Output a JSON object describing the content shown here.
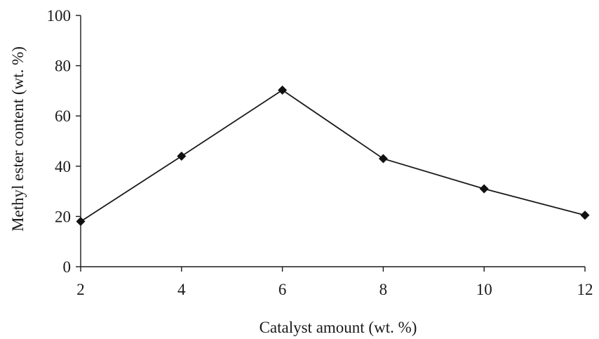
{
  "chart_data": {
    "type": "line",
    "xlabel": "Catalyst amount (wt. %)",
    "ylabel": "Methyl ester content (wt. %)",
    "xlim": [
      2,
      12
    ],
    "ylim": [
      0,
      100
    ],
    "x_ticks": [
      2,
      4,
      6,
      8,
      10,
      12
    ],
    "y_ticks": [
      0,
      20,
      40,
      60,
      80,
      100
    ],
    "grid": false,
    "marker": "diamond",
    "series": [
      {
        "x": [
          2,
          4,
          6,
          8,
          10,
          12
        ],
        "y": [
          18,
          44,
          70.3,
          43,
          31,
          20.5
        ]
      }
    ]
  }
}
